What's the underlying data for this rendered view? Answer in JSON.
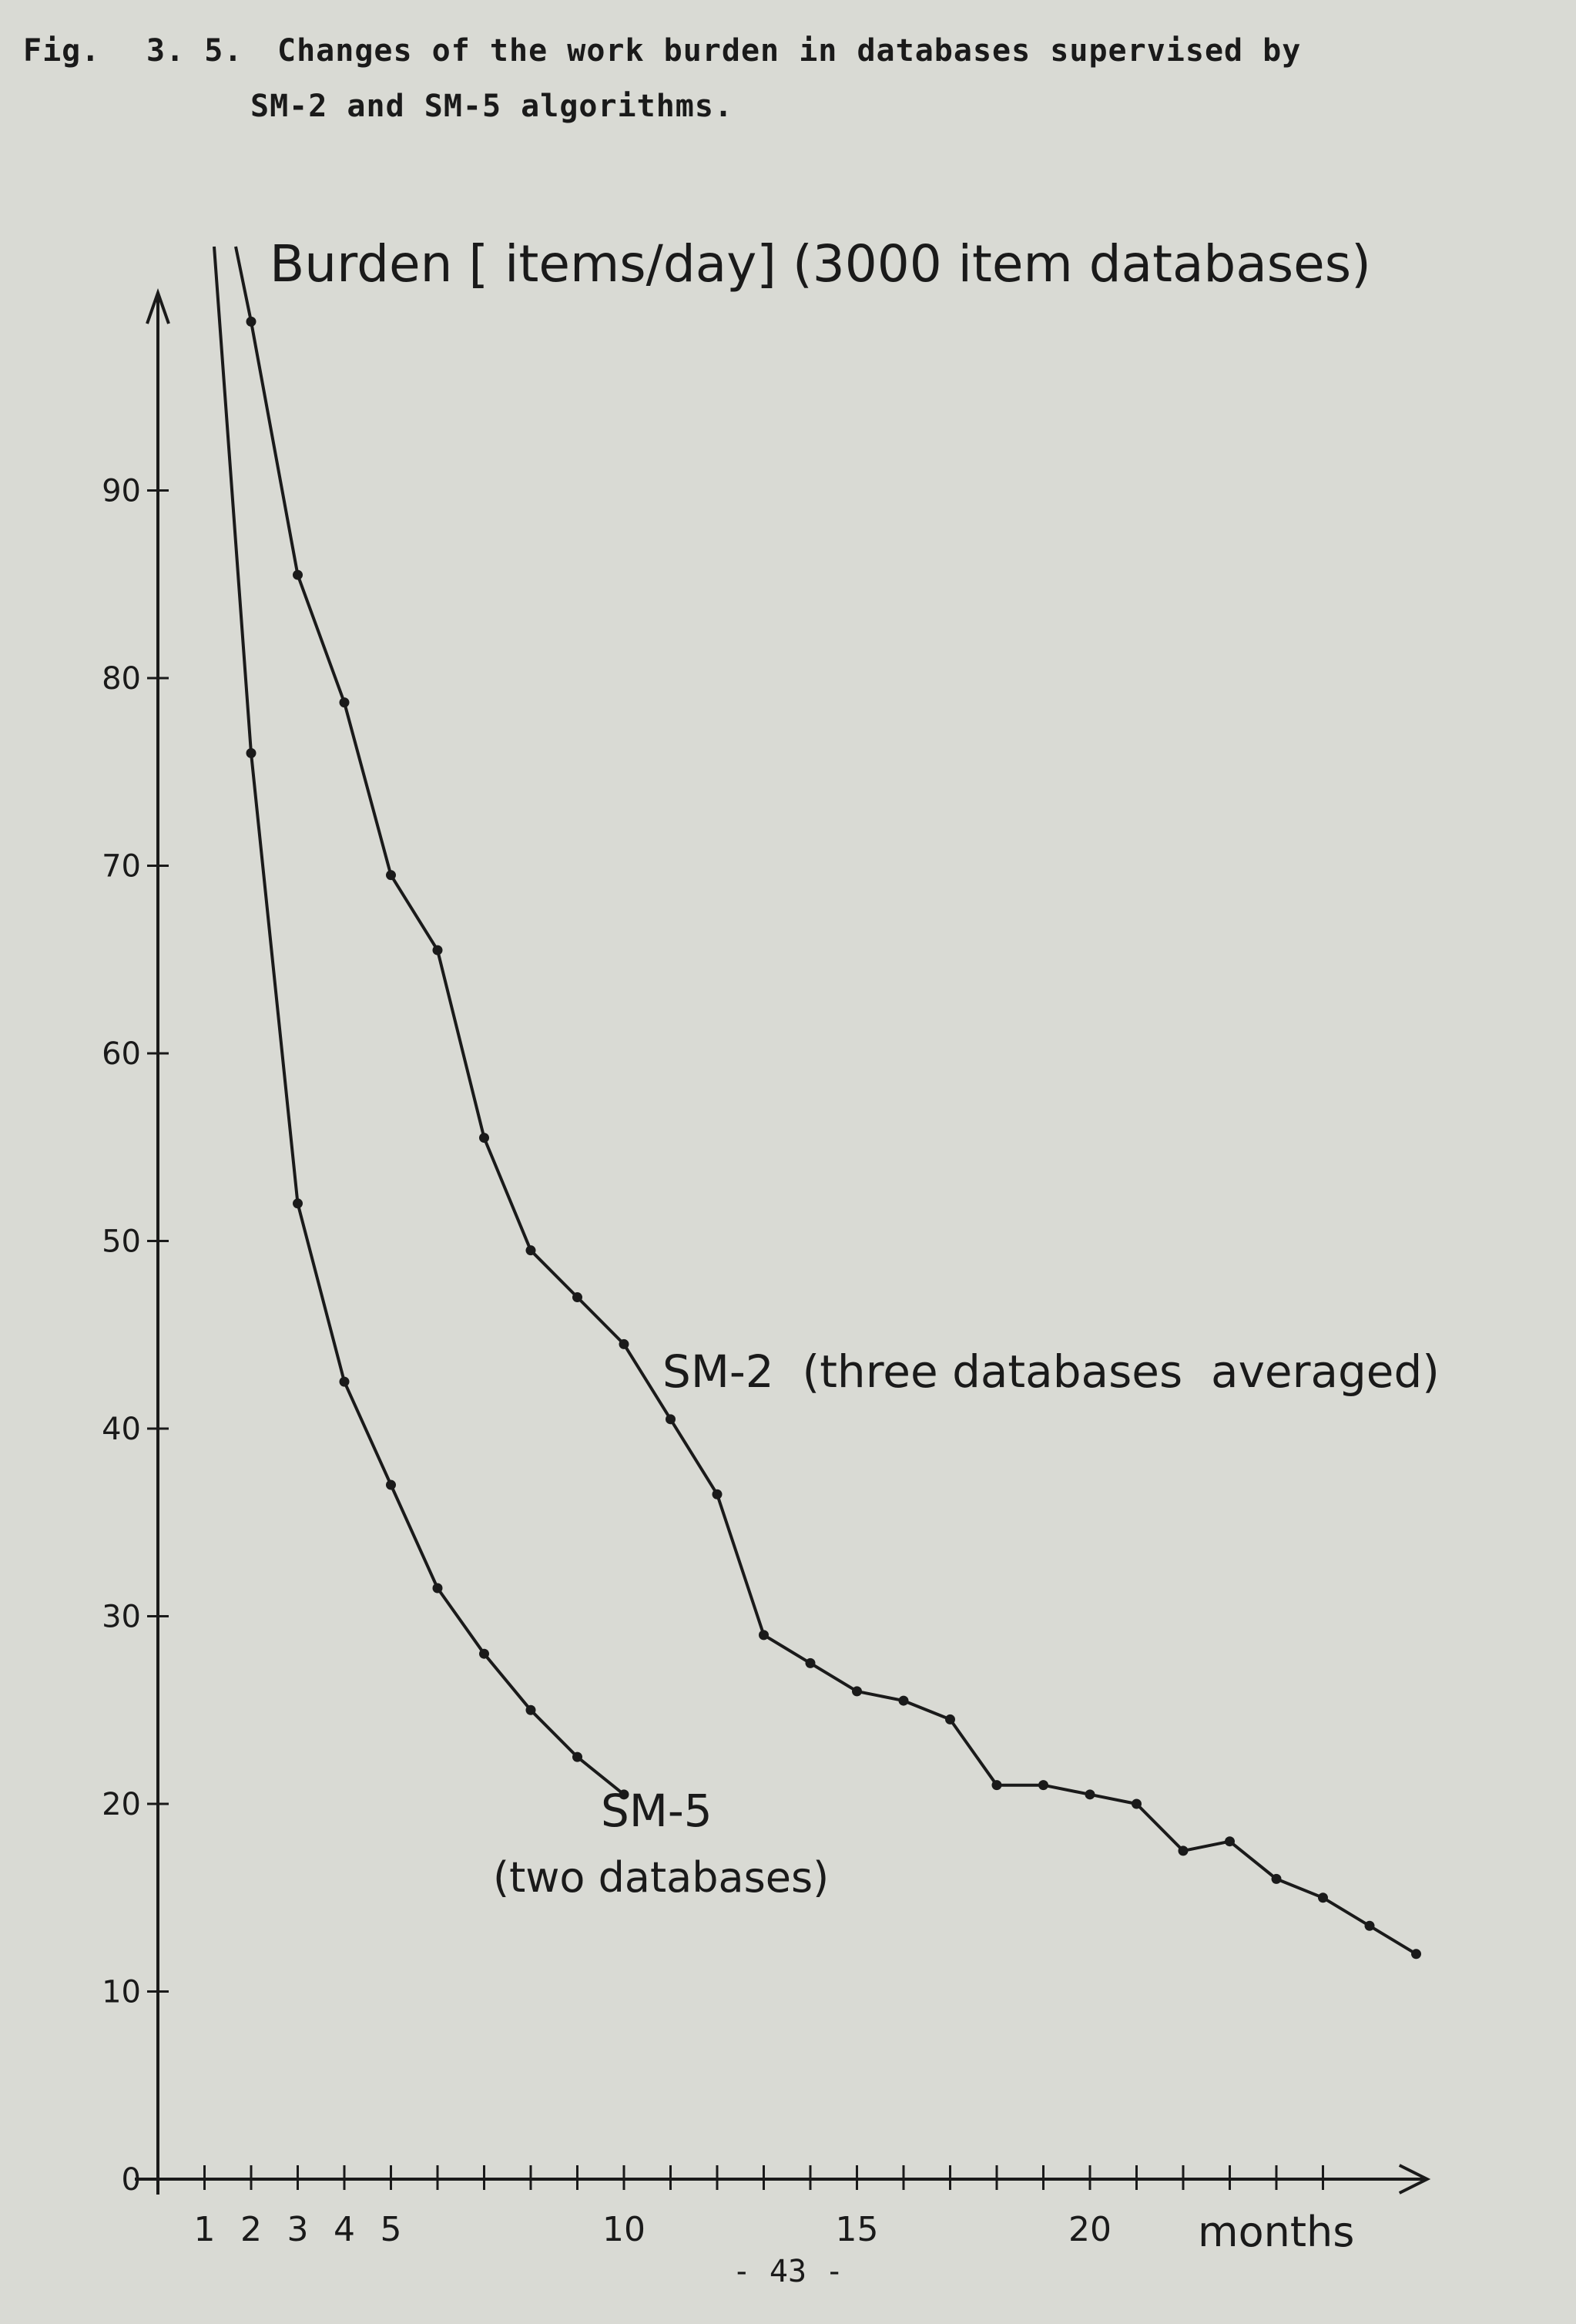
{
  "caption": {
    "fig_label": "Fig.",
    "fig_number": "3. 5.",
    "line1": "Changes of the work burden in databases supervised by",
    "line2": "SM-2 and SM-5 algorithms."
  },
  "page_number": "- 43 -",
  "chart_data": {
    "type": "line",
    "title": "Burden [ items/day] (3000 item databases)",
    "xlabel": "months",
    "ylabel": "",
    "xlim": [
      0,
      25.5
    ],
    "ylim": [
      0,
      100
    ],
    "x_tick_labels": [
      {
        "x": 1,
        "label": "1"
      },
      {
        "x": 2,
        "label": "2"
      },
      {
        "x": 3,
        "label": "3"
      },
      {
        "x": 4,
        "label": "4"
      },
      {
        "x": 5,
        "label": "5"
      },
      {
        "x": 10,
        "label": "10"
      },
      {
        "x": 15,
        "label": "15"
      },
      {
        "x": 20,
        "label": "20"
      }
    ],
    "x_ticks_minor": [
      1,
      2,
      3,
      4,
      5,
      6,
      7,
      8,
      9,
      10,
      11,
      12,
      13,
      14,
      15,
      16,
      17,
      18,
      19,
      20,
      21,
      22,
      23,
      24,
      25
    ],
    "y_ticks": [
      0,
      10,
      20,
      30,
      40,
      50,
      60,
      70,
      80,
      90
    ],
    "series": [
      {
        "name": "SM-2 (three databases averaged)",
        "label_lines": [
          "SM-2  (three databases  averaged)"
        ],
        "x": [
          2,
          3,
          4,
          5,
          6,
          7,
          8,
          9,
          10,
          11,
          12,
          13,
          14,
          15,
          16,
          17,
          18,
          19,
          20,
          21,
          22,
          23,
          24,
          25,
          26,
          27
        ],
        "y": [
          99,
          85.5,
          78.7,
          69.5,
          65.5,
          55.5,
          49.5,
          47,
          44.5,
          40.5,
          36.5,
          29,
          27.5,
          26,
          25.5,
          24.5,
          21,
          21,
          20.5,
          20,
          17.5,
          18,
          16,
          15,
          13.5,
          12
        ],
        "start_above_top": true
      },
      {
        "name": "SM-5 (two databases)",
        "label_lines": [
          "SM-5",
          "(two databases)"
        ],
        "x": [
          2,
          3,
          4,
          5,
          6,
          7,
          8,
          9,
          10
        ],
        "y": [
          76,
          52,
          42.5,
          37,
          31.5,
          28,
          25,
          22.5,
          20.5
        ],
        "start_above_top": true
      }
    ]
  }
}
